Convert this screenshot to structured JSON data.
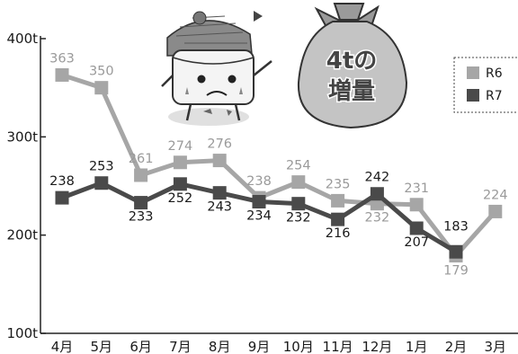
{
  "chart_data": {
    "type": "line",
    "categories": [
      "4月",
      "5月",
      "6月",
      "7月",
      "8月",
      "9月",
      "10月",
      "11月",
      "12月",
      "1月",
      "2月",
      "3月"
    ],
    "series": [
      {
        "name": "R6",
        "color": "#a6a6a6",
        "values": [
          363,
          350,
          261,
          274,
          276,
          238,
          254,
          235,
          232,
          231,
          179,
          224
        ]
      },
      {
        "name": "R7",
        "color": "#4a4a4a",
        "values": [
          238,
          253,
          233,
          252,
          243,
          234,
          232,
          216,
          242,
          207,
          183,
          null
        ]
      }
    ],
    "y_ticks": [
      "100t",
      "200t",
      "300t",
      "400t"
    ],
    "ylim": [
      100,
      400
    ],
    "unit": "t",
    "legend_position": "top-right",
    "grid": false
  },
  "badge": {
    "line1": "4tの",
    "line2": "増量"
  }
}
